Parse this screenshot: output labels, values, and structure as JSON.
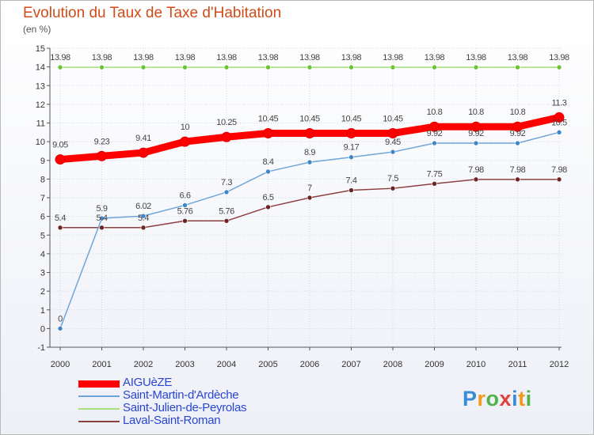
{
  "title": "Evolution du Taux de Taxe d'Habitation",
  "unit": "(en %)",
  "colors": {
    "title": "#d04c18",
    "legend_text": "#2a46d1",
    "grid": "#d4d8e8"
  },
  "logo": {
    "letters": [
      {
        "ch": "P",
        "color": "#3a8bd6"
      },
      {
        "ch": "r",
        "color": "#f19a1d"
      },
      {
        "ch": "o",
        "color": "#4fb34a"
      },
      {
        "ch": "x",
        "color": "#e0413a"
      },
      {
        "ch": "i",
        "color": "#3a8bd6"
      },
      {
        "ch": "t",
        "color": "#f19a1d"
      },
      {
        "ch": "i",
        "color": "#4fb34a"
      }
    ]
  },
  "chart_data": {
    "type": "line",
    "title": "Evolution du Taux de Taxe d'Habitation",
    "ylabel": "(en %)",
    "xlabel": "",
    "x": [
      "2000",
      "2001",
      "2002",
      "2003",
      "2004",
      "2005",
      "2006",
      "2007",
      "2008",
      "2009",
      "2010",
      "2011",
      "2012"
    ],
    "ylim": [
      -1,
      15
    ],
    "yticks": [
      "-1",
      "0",
      "1",
      "2",
      "3",
      "4",
      "5",
      "6",
      "7",
      "8",
      "9",
      "10",
      "11",
      "12",
      "13",
      "14",
      "15"
    ],
    "grid": true,
    "legend": "bottom-left",
    "series": [
      {
        "name": "AIGUèZE",
        "color": "#ff0000",
        "width": 9,
        "values": [
          9.05,
          9.23,
          9.41,
          10,
          10.25,
          10.45,
          10.45,
          10.45,
          10.45,
          10.8,
          10.8,
          10.8,
          11.3
        ],
        "labels": [
          "9.05",
          "9.23",
          "9.41",
          "10",
          "10.25",
          "10.45",
          "10.45",
          "10.45",
          "10.45",
          "10.8",
          "10.8",
          "10.8",
          "11.3"
        ]
      },
      {
        "name": "Saint-Martin-d'Ardèche",
        "color": "#6fa6d9",
        "marker": "#3f86c8",
        "width": 1.5,
        "values": [
          0,
          5.9,
          6.02,
          6.6,
          7.3,
          8.4,
          8.9,
          9.17,
          9.45,
          9.92,
          9.92,
          9.92,
          10.5
        ],
        "labels": [
          "0",
          "5.9",
          "6.02",
          "6.6",
          "7.3",
          "8.4",
          "8.9",
          "9.17",
          "9.45",
          "9.92",
          "9.92",
          "9.92",
          "10.5"
        ]
      },
      {
        "name": "Saint-Julien-de-Peyrolas",
        "color": "#a6e07a",
        "marker": "#6cc232",
        "width": 1.5,
        "values": [
          13.98,
          13.98,
          13.98,
          13.98,
          13.98,
          13.98,
          13.98,
          13.98,
          13.98,
          13.98,
          13.98,
          13.98,
          13.98
        ],
        "labels": [
          "13.98",
          "13.98",
          "13.98",
          "13.98",
          "13.98",
          "13.98",
          "13.98",
          "13.98",
          "13.98",
          "13.98",
          "13.98",
          "13.98",
          "13.98"
        ]
      },
      {
        "name": "Laval-Saint-Roman",
        "color": "#8c4141",
        "marker": "#6e2424",
        "width": 1.5,
        "values": [
          5.4,
          5.4,
          5.4,
          5.76,
          5.76,
          6.5,
          7,
          7.4,
          7.5,
          7.75,
          7.98,
          7.98,
          7.98
        ],
        "labels": [
          "5.4",
          "5.4",
          "5.4",
          "5.76",
          "5.76",
          "6.5",
          "7",
          "7.4",
          "7.5",
          "7.75",
          "7.98",
          "7.98",
          "7.98"
        ]
      }
    ]
  }
}
